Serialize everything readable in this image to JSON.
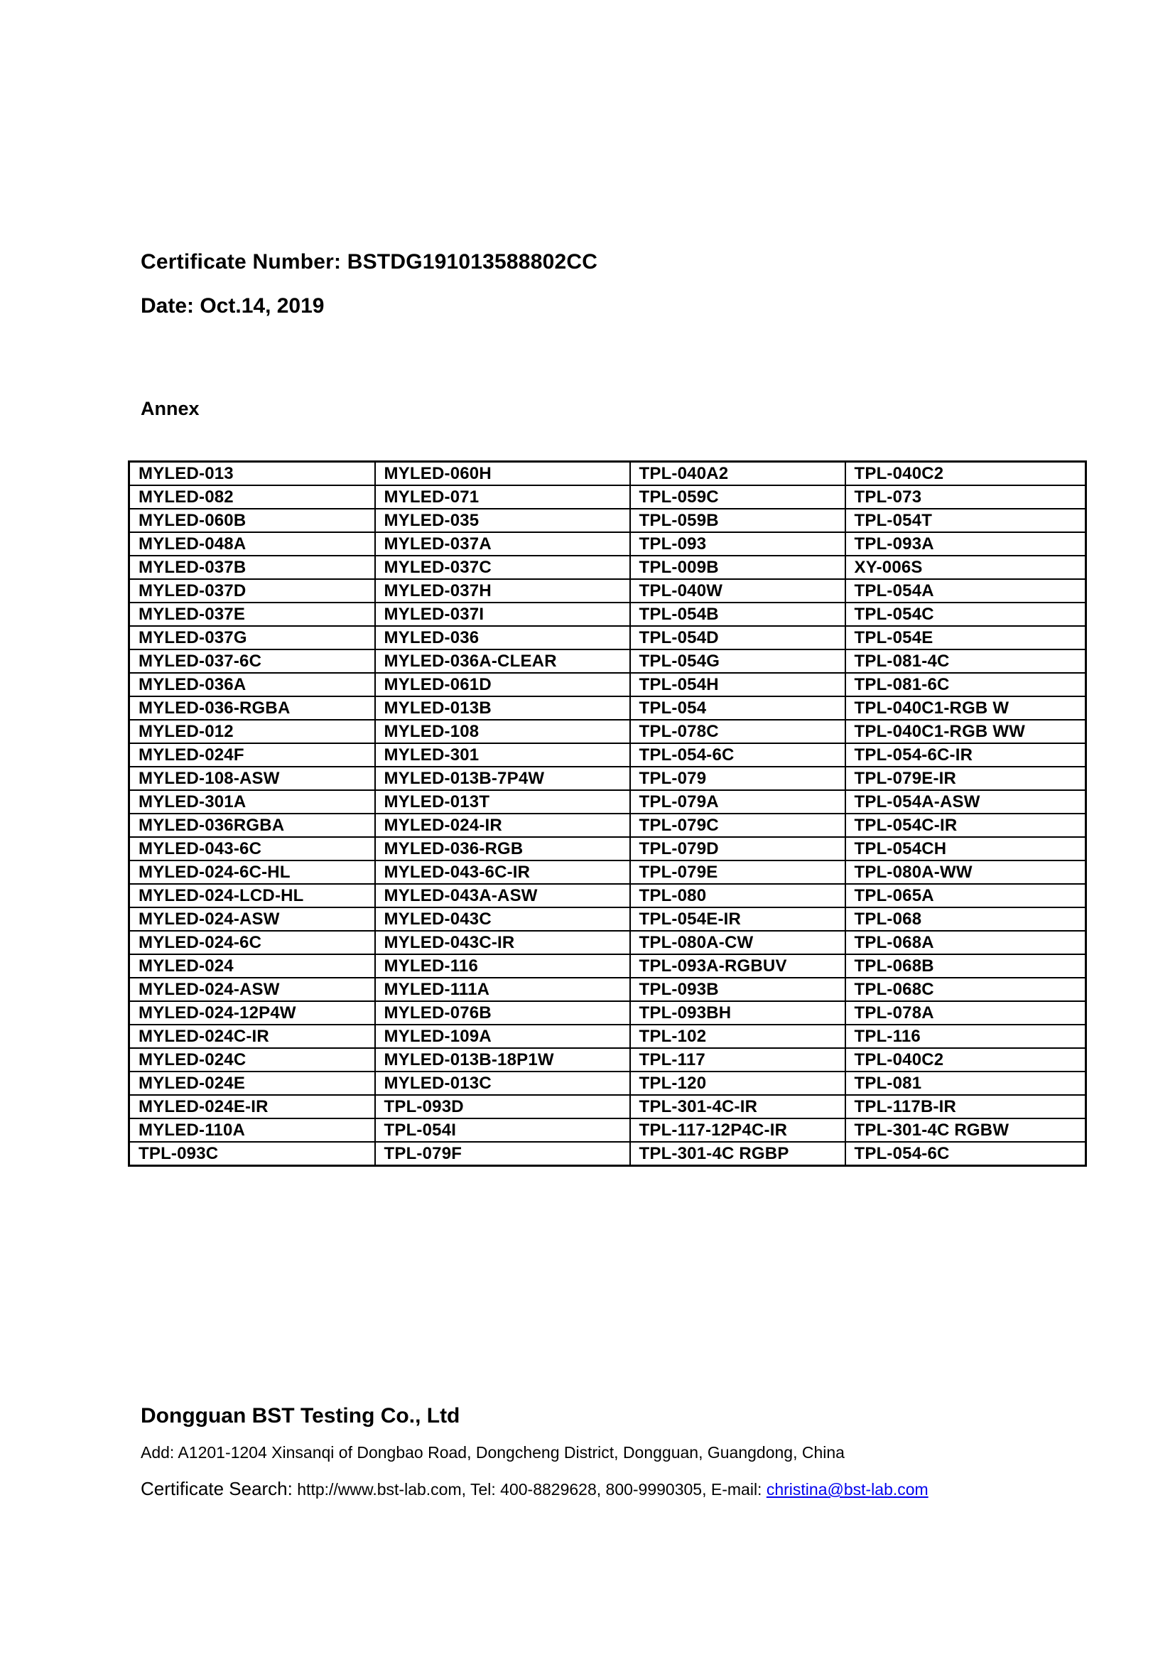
{
  "header": {
    "certificate_number_line": "Certificate Number: BSTDG191013588802CC",
    "date_line": "Date: Oct.14, 2019",
    "annex_label": "Annex"
  },
  "annex_table": {
    "columns": 4,
    "rows": [
      [
        "MYLED-013",
        "MYLED-060H",
        "TPL-040A2",
        "TPL-040C2"
      ],
      [
        "MYLED-082",
        "MYLED-071",
        "TPL-059C",
        "TPL-073"
      ],
      [
        "MYLED-060B",
        "MYLED-035",
        "TPL-059B",
        "TPL-054T"
      ],
      [
        "MYLED-048A",
        "MYLED-037A",
        "TPL-093",
        "TPL-093A"
      ],
      [
        "MYLED-037B",
        "MYLED-037C",
        "TPL-009B",
        "XY-006S"
      ],
      [
        "MYLED-037D",
        "MYLED-037H",
        "TPL-040W",
        "TPL-054A"
      ],
      [
        "MYLED-037E",
        "MYLED-037I",
        "TPL-054B",
        "TPL-054C"
      ],
      [
        "MYLED-037G",
        "MYLED-036",
        "TPL-054D",
        "TPL-054E"
      ],
      [
        "MYLED-037-6C",
        "MYLED-036A-CLEAR",
        "TPL-054G",
        "TPL-081-4C"
      ],
      [
        "MYLED-036A",
        "MYLED-061D",
        "TPL-054H",
        "TPL-081-6C"
      ],
      [
        "MYLED-036-RGBA",
        "MYLED-013B",
        "TPL-054",
        "TPL-040C1-RGB W"
      ],
      [
        "MYLED-012",
        "MYLED-108",
        "TPL-078C",
        "TPL-040C1-RGB WW"
      ],
      [
        "MYLED-024F",
        "MYLED-301",
        "TPL-054-6C",
        "TPL-054-6C-IR"
      ],
      [
        "MYLED-108-ASW",
        "MYLED-013B-7P4W",
        "TPL-079",
        "TPL-079E-IR"
      ],
      [
        "MYLED-301A",
        "MYLED-013T",
        "TPL-079A",
        "TPL-054A-ASW"
      ],
      [
        "MYLED-036RGBA",
        "MYLED-024-IR",
        "TPL-079C",
        "TPL-054C-IR"
      ],
      [
        "MYLED-043-6C",
        "MYLED-036-RGB",
        "TPL-079D",
        "TPL-054CH"
      ],
      [
        "MYLED-024-6C-HL",
        "MYLED-043-6C-IR",
        "TPL-079E",
        "TPL-080A-WW"
      ],
      [
        "MYLED-024-LCD-HL",
        "MYLED-043A-ASW",
        "TPL-080",
        "TPL-065A"
      ],
      [
        "MYLED-024-ASW",
        "MYLED-043C",
        "TPL-054E-IR",
        "TPL-068"
      ],
      [
        "MYLED-024-6C",
        "MYLED-043C-IR",
        "TPL-080A-CW",
        "TPL-068A"
      ],
      [
        "MYLED-024",
        "MYLED-116",
        "TPL-093A-RGBUV",
        "TPL-068B"
      ],
      [
        "MYLED-024-ASW",
        "MYLED-111A",
        "TPL-093B",
        "TPL-068C"
      ],
      [
        "MYLED-024-12P4W",
        "MYLED-076B",
        "TPL-093BH",
        "TPL-078A"
      ],
      [
        "MYLED-024C-IR",
        "MYLED-109A",
        "TPL-102",
        "TPL-116"
      ],
      [
        "MYLED-024C",
        "MYLED-013B-18P1W",
        "TPL-117",
        "TPL-040C2"
      ],
      [
        "MYLED-024E",
        "MYLED-013C",
        "TPL-120",
        "TPL-081"
      ],
      [
        "MYLED-024E-IR",
        "TPL-093D",
        "TPL-301-4C-IR",
        "TPL-117B-IR"
      ],
      [
        "MYLED-110A",
        "TPL-054I",
        "TPL-117-12P4C-IR",
        "TPL-301-4C RGBW"
      ],
      [
        "TPL-093C",
        "TPL-079F",
        "TPL-301-4C RGBP",
        "TPL-054-6C"
      ]
    ]
  },
  "footer": {
    "company": "Dongguan BST Testing Co., Ltd",
    "address": "Add: A1201-1204 Xinsanqi of Dongbao Road, Dongcheng District, Dongguan, Guangdong, China",
    "search_label": "Certificate Search:",
    "search_info": "http://www.bst-lab.com, Tel: 400-8829628, 800-9990305, E-mail: ",
    "email_link": "christina@bst-lab.com",
    "link_color": "#0000ee"
  }
}
